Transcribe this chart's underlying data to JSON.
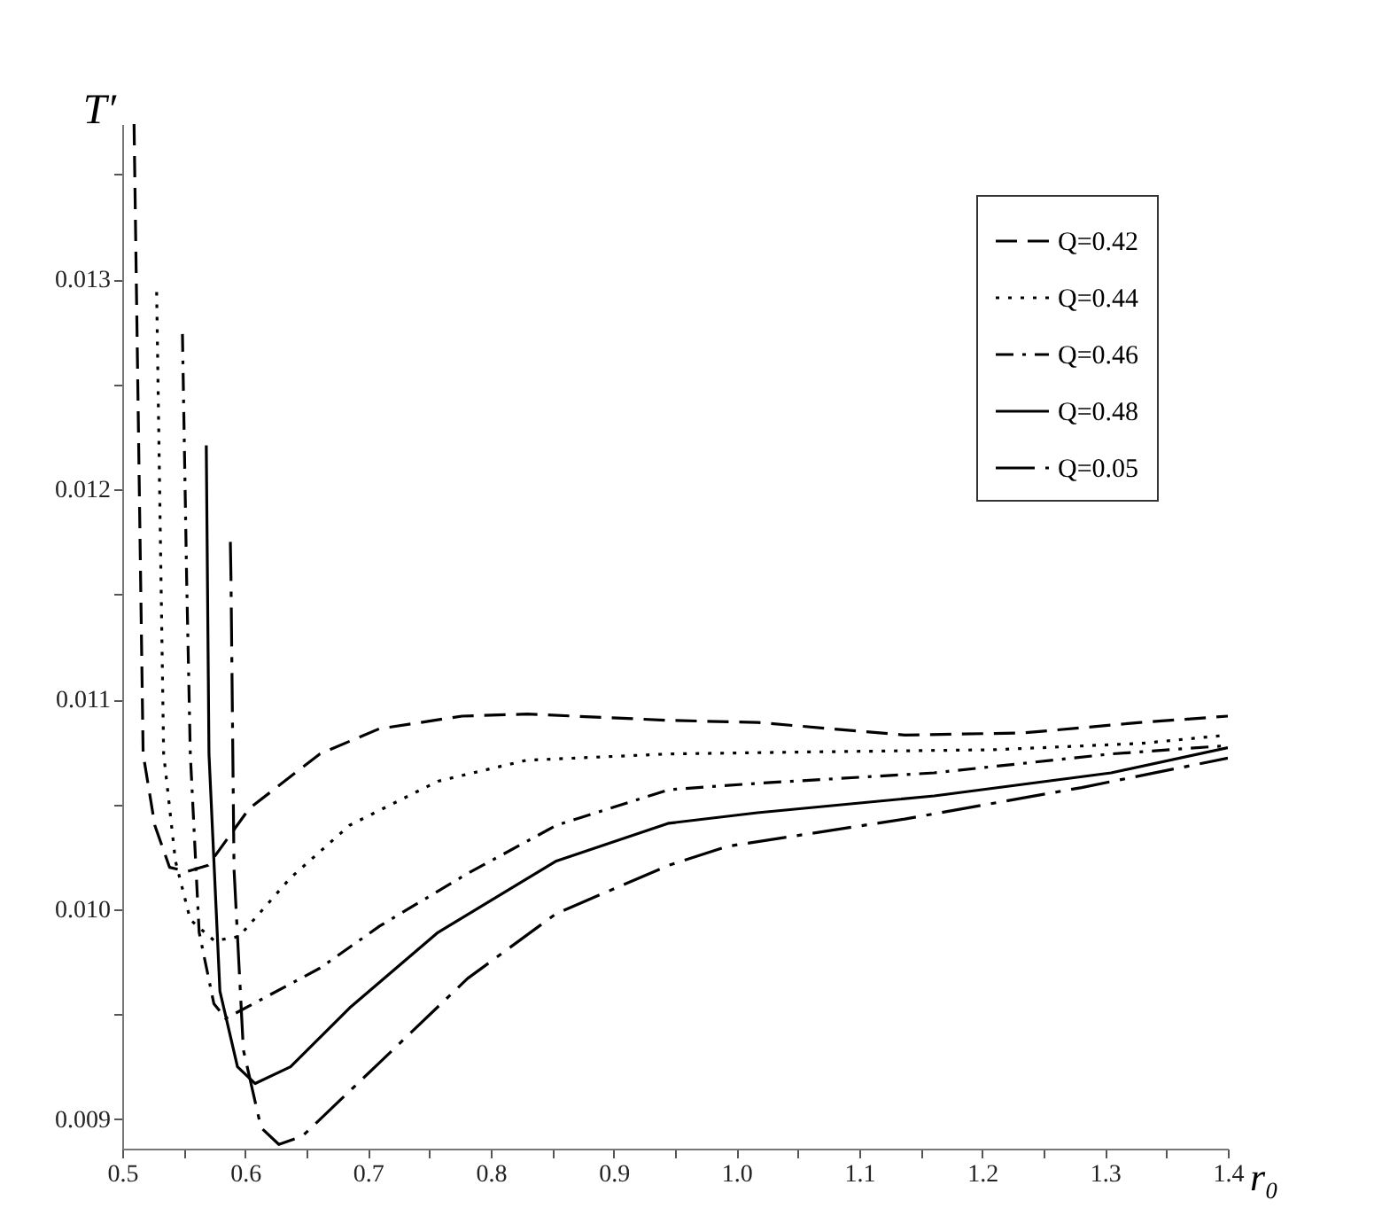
{
  "chart_data": {
    "type": "line",
    "xlabel": "r₀",
    "ylabel": "T′",
    "xlim": [
      0.5,
      1.4
    ],
    "ylim": [
      0.00886,
      0.01374
    ],
    "xticks": [
      0.5,
      {
        "value": 0.55,
        "label": null
      },
      0.6,
      {
        "value": 0.65,
        "label": null
      },
      0.7,
      {
        "value": 0.75,
        "label": null
      },
      0.8,
      {
        "value": 0.85,
        "label": null
      },
      0.9,
      {
        "value": 0.95,
        "label": null
      },
      {
        "value": 1.0,
        "label": "1.0"
      },
      {
        "value": 1.05,
        "label": null
      },
      1.1,
      {
        "value": 1.15,
        "label": null
      },
      1.2,
      {
        "value": 1.25,
        "label": null
      },
      1.3,
      {
        "value": 1.35,
        "label": null
      },
      1.4
    ],
    "yticks": [
      0.009,
      {
        "value": 0.0095,
        "label": null
      },
      {
        "value": 0.01,
        "label": "0.010"
      },
      {
        "value": 0.0105,
        "label": null
      },
      0.011,
      {
        "value": 0.0115,
        "label": null
      },
      0.012,
      {
        "value": 0.0125,
        "label": null
      },
      0.013,
      {
        "value": 0.0135,
        "label": null
      }
    ],
    "grid": false,
    "legend": "top right",
    "series": [
      {
        "name": "Q=0.42",
        "color": "#000000",
        "line_style": "dashed",
        "x": [
          0.5096,
          0.517,
          0.5265,
          0.5385,
          0.553,
          0.57,
          0.6034,
          0.6608,
          0.7092,
          0.7766,
          0.8294,
          0.9448,
          1.017,
          1.137,
          1.233,
          1.329,
          1.4
        ],
        "values": [
          0.01374,
          0.01074,
          0.0104,
          0.0102,
          0.01018,
          0.01021,
          0.01048,
          0.01074,
          0.01086,
          0.01092,
          0.01093,
          0.0109,
          0.01089,
          0.01083,
          0.01084,
          0.01089,
          0.01092
        ]
      },
      {
        "name": "Q=0.44",
        "color": "#000000",
        "line_style": "dotted",
        "x": [
          0.528,
          0.5337,
          0.5433,
          0.5554,
          0.575,
          0.595,
          0.637,
          0.685,
          0.757,
          0.829,
          0.945,
          1.065,
          1.209,
          1.329,
          1.4
        ],
        "values": [
          0.01294,
          0.01074,
          0.01023,
          0.00995,
          0.00985,
          0.00987,
          0.01015,
          0.0104,
          0.01061,
          0.01071,
          0.01074,
          0.01075,
          0.01076,
          0.01079,
          0.01083
        ]
      },
      {
        "name": "Q=0.46",
        "color": "#000000",
        "line_style": "dashdot",
        "x": [
          0.549,
          0.5524,
          0.5554,
          0.5626,
          0.5746,
          0.5842,
          0.661,
          0.7095,
          0.781,
          0.8534,
          0.945,
          1.017,
          1.161,
          1.305,
          1.4
        ],
        "values": [
          0.01274,
          0.01158,
          0.01074,
          0.00989,
          0.00955,
          0.00948,
          0.00972,
          0.00992,
          0.01017,
          0.0104,
          0.01057,
          0.0106,
          0.01065,
          0.01074,
          0.01078
        ]
      },
      {
        "name": "Q=0.48",
        "color": "#000000",
        "line_style": "solid",
        "x": [
          0.5684,
          0.5706,
          0.5795,
          0.5938,
          0.6082,
          0.637,
          0.685,
          0.757,
          0.8534,
          0.945,
          1.017,
          1.161,
          1.305,
          1.4
        ],
        "values": [
          0.01221,
          0.01074,
          0.00961,
          0.00925,
          0.00917,
          0.00925,
          0.00953,
          0.00989,
          0.01023,
          0.01041,
          0.01046,
          0.01054,
          0.01065,
          0.01077
        ]
      },
      {
        "name": "Q=0.05",
        "color": "#000000",
        "line_style": "longdashdot",
        "x": [
          0.588,
          0.5885,
          0.591,
          0.5986,
          0.613,
          0.6275,
          0.6467,
          0.7095,
          0.781,
          0.8534,
          0.945,
          0.9928,
          1.137,
          1.281,
          1.4
        ],
        "values": [
          0.01175,
          0.01158,
          0.01019,
          0.00933,
          0.00896,
          0.00888,
          0.00892,
          0.00927,
          0.00967,
          0.00998,
          0.01021,
          0.0103,
          0.01043,
          0.01058,
          0.01072
        ]
      }
    ]
  }
}
